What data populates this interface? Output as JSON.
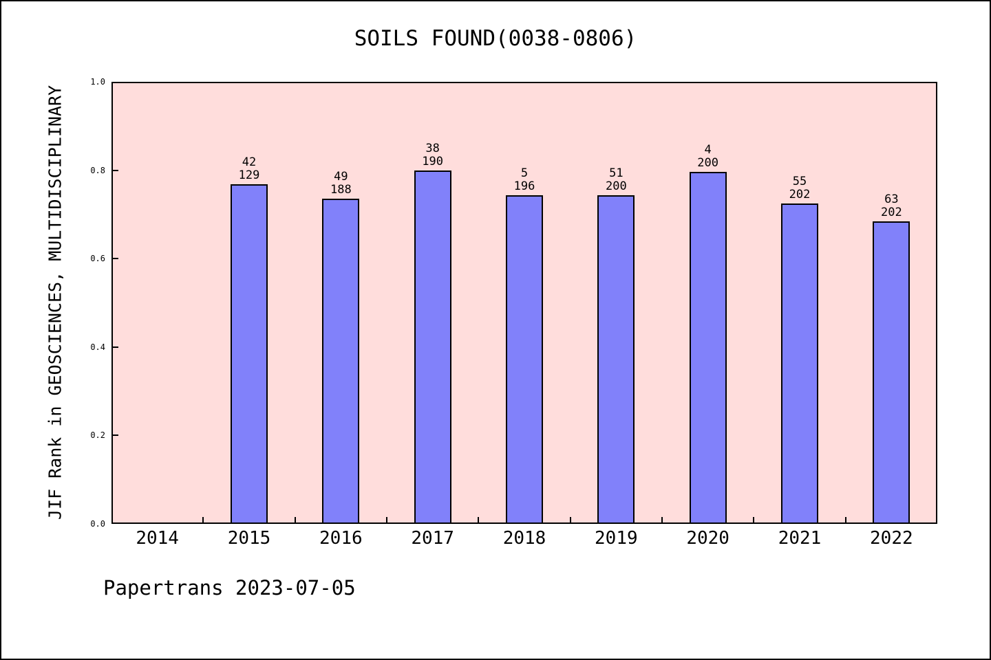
{
  "page": {
    "background": "#ffffff",
    "border_color": "#000000",
    "footer": "Papertrans 2023-07-05"
  },
  "chart_data": {
    "type": "bar",
    "title": "SOILS FOUND(0038-0806)",
    "xlabel": "",
    "ylabel": "JIF Rank in GEOSCIENCES, MULTIDISCIPLINARY",
    "ylim": [
      0.0,
      1.0
    ],
    "grid": false,
    "legend": false,
    "plot_bg": "#ffdddc",
    "bar_fill": "#8181fa",
    "bar_edge": "#000000",
    "categories": [
      "2014",
      "2015",
      "2016",
      "2017",
      "2018",
      "2019",
      "2020",
      "2021",
      "2022"
    ],
    "values": [
      null,
      0.768,
      0.736,
      0.799,
      0.744,
      0.744,
      0.797,
      0.725,
      0.684
    ],
    "yticks": [
      {
        "value": 0.0,
        "label": "0.0"
      },
      {
        "value": 0.2,
        "label": "0.2"
      },
      {
        "value": 0.4,
        "label": "0.4"
      },
      {
        "value": 0.6,
        "label": "0.6"
      },
      {
        "value": 0.8,
        "label": "0.8"
      },
      {
        "value": 1.0,
        "label": "1.0"
      }
    ],
    "bars": [
      {
        "year": "2015",
        "rank": "42",
        "total": "129",
        "value": 0.768
      },
      {
        "year": "2016",
        "rank": "49",
        "total": "188",
        "value": 0.736
      },
      {
        "year": "2017",
        "rank": "38",
        "total": "190",
        "value": 0.799
      },
      {
        "year": "2018",
        "rank": "5",
        "total": "196",
        "value": 0.744
      },
      {
        "year": "2019",
        "rank": "51",
        "total": "200",
        "value": 0.744
      },
      {
        "year": "2020",
        "rank": "4",
        "total": "200",
        "value": 0.797
      },
      {
        "year": "2021",
        "rank": "55",
        "total": "202",
        "value": 0.725
      },
      {
        "year": "2022",
        "rank": "63",
        "total": "202",
        "value": 0.684
      }
    ]
  }
}
